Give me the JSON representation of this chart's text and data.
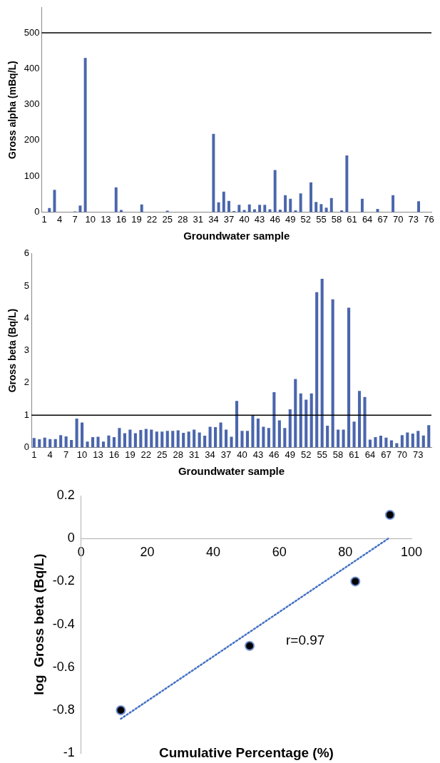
{
  "chart_data": [
    {
      "type": "bar",
      "xlabel": "Groundwater sample",
      "ylabel": "Gross alpha (mBq/L)",
      "categories": [
        "1",
        null,
        null,
        "4",
        null,
        null,
        "7",
        null,
        null,
        "10",
        null,
        null,
        "13",
        null,
        null,
        "16",
        null,
        null,
        "19",
        null,
        null,
        "22",
        null,
        null,
        "25",
        null,
        null,
        "28",
        null,
        null,
        "31",
        null,
        null,
        "34",
        null,
        null,
        "37",
        null,
        null,
        "40",
        null,
        null,
        "43",
        null,
        null,
        "46",
        null,
        null,
        "49",
        null,
        null,
        "52",
        null,
        null,
        "55",
        null,
        null,
        "58",
        null,
        null,
        "61",
        null,
        null,
        "64",
        null,
        null,
        "67",
        null,
        null,
        "70",
        null,
        null,
        "73",
        null,
        null,
        "76"
      ],
      "values": [
        null,
        11,
        62,
        null,
        null,
        null,
        2,
        18,
        430,
        null,
        null,
        null,
        null,
        null,
        69,
        6,
        null,
        null,
        null,
        21,
        null,
        null,
        null,
        null,
        4,
        null,
        null,
        null,
        null,
        null,
        null,
        null,
        null,
        218,
        27,
        57,
        31,
        3,
        20,
        6,
        21,
        8,
        20,
        20,
        8,
        117,
        7,
        47,
        37,
        5,
        52,
        null,
        83,
        28,
        22,
        12,
        39,
        null,
        5,
        158,
        null,
        null,
        37,
        null,
        null,
        9,
        null,
        null,
        47,
        null,
        null,
        null,
        null,
        30,
        null,
        null
      ],
      "color": "#4a66ac",
      "ylim": [
        0,
        570
      ],
      "yticks": [
        0,
        100,
        200,
        300,
        400,
        500
      ],
      "ref_lines": [
        {
          "axis": "y",
          "value": 500,
          "color": "#000000"
        }
      ]
    },
    {
      "type": "bar",
      "xlabel": "Groundwater sample",
      "ylabel": "Gross beta (Bq/L)",
      "categories": [
        "1",
        null,
        null,
        "4",
        null,
        null,
        "7",
        null,
        null,
        "10",
        null,
        null,
        "13",
        null,
        null,
        "16",
        null,
        null,
        "19",
        null,
        null,
        "22",
        null,
        null,
        "25",
        null,
        null,
        "28",
        null,
        null,
        "31",
        null,
        null,
        "34",
        null,
        null,
        "37",
        null,
        null,
        "40",
        null,
        null,
        "43",
        null,
        null,
        "46",
        null,
        null,
        "49",
        null,
        null,
        "52",
        null,
        null,
        "55",
        null,
        null,
        "58",
        null,
        null,
        "61",
        null,
        null,
        "64",
        null,
        null,
        "67",
        null,
        null,
        "70",
        null,
        null,
        "73",
        null,
        null
      ],
      "values": [
        0.29,
        0.25,
        0.3,
        0.26,
        0.26,
        0.38,
        0.34,
        0.23,
        0.89,
        0.77,
        0.18,
        0.32,
        0.33,
        0.18,
        0.37,
        0.32,
        0.6,
        0.44,
        0.55,
        0.44,
        0.54,
        0.57,
        0.55,
        0.49,
        0.49,
        0.51,
        0.51,
        0.53,
        0.45,
        0.49,
        0.55,
        0.46,
        0.36,
        0.64,
        0.63,
        0.77,
        0.55,
        0.33,
        1.44,
        0.51,
        0.51,
        1.0,
        0.89,
        0.64,
        0.6,
        1.71,
        0.84,
        0.6,
        1.18,
        2.12,
        1.67,
        1.48,
        1.67,
        4.81,
        5.22,
        0.67,
        4.59,
        0.55,
        0.55,
        4.33,
        0.8,
        1.75,
        1.56,
        0.24,
        0.32,
        0.36,
        0.3,
        0.22,
        0.13,
        0.38,
        0.46,
        0.43,
        0.51,
        0.37,
        0.69
      ],
      "color": "#4a66ac",
      "ylim": [
        0,
        6
      ],
      "yticks": [
        0,
        1,
        2,
        3,
        4,
        5,
        6
      ],
      "ref_lines": [
        {
          "axis": "y",
          "value": 1,
          "color": "#000000"
        }
      ]
    },
    {
      "type": "scatter",
      "xlabel": "Cumulative Percentage (%)",
      "ylabel": "log  Gross beta (Bq/L)",
      "series": [
        {
          "type": "scatter",
          "x": [
            12,
            51,
            83,
            93.5
          ],
          "values": [
            -0.8,
            -0.5,
            -0.2,
            0.11
          ],
          "color": "#000000",
          "marker": "circle"
        },
        {
          "type": "line",
          "x": [
            12,
            93
          ],
          "values": [
            -0.84,
            0.0
          ],
          "color": "#4472c4",
          "line_style": "dotted",
          "marker": "none"
        }
      ],
      "xlim": [
        0,
        100
      ],
      "xticks": [
        0,
        20,
        40,
        60,
        80,
        100
      ],
      "ylim": [
        -1,
        0.2
      ],
      "yticks": [
        -1,
        -0.8,
        -0.6,
        -0.4,
        -0.2,
        0,
        0.2
      ],
      "annotations": [
        "r=0.97"
      ]
    }
  ]
}
